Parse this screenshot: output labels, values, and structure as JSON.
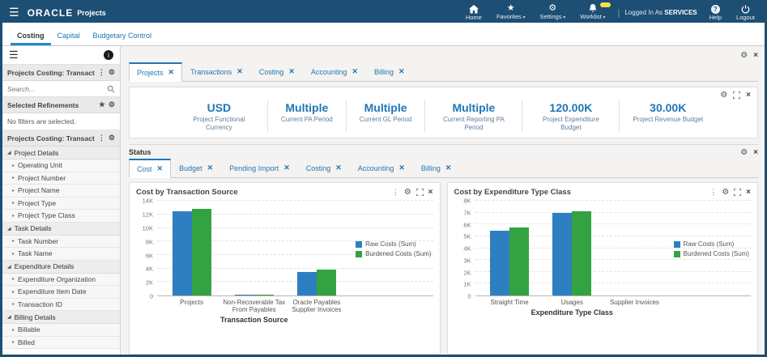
{
  "header": {
    "brand": "ORACLE",
    "app": "Projects",
    "nav": [
      {
        "label": "Home",
        "icon": "home-icon",
        "dropdown": false,
        "badge": false
      },
      {
        "label": "Favorites",
        "icon": "star-icon",
        "dropdown": true,
        "badge": false
      },
      {
        "label": "Settings",
        "icon": "gear-icon",
        "dropdown": true,
        "badge": false
      },
      {
        "label": "Worklist",
        "icon": "bell-icon",
        "dropdown": true,
        "badge": true
      }
    ],
    "logged_in_as": "Logged In As",
    "user": "SERVICES",
    "help_label": "Help",
    "logout_label": "Logout"
  },
  "page_tabs": {
    "items": [
      "Costing",
      "Capital",
      "Budgetary Control"
    ],
    "active_index": 0
  },
  "sidebar": {
    "panel1_title": "Projects Costing: Transact...",
    "search_placeholder": "Search...",
    "refinements_title": "Selected Refinements",
    "no_filters_text": "No filters are selected.",
    "panel2_title": "Projects Costing: Transact...",
    "groups": [
      {
        "label": "Project Details",
        "items": [
          "Operating Unit",
          "Project Number",
          "Project Name",
          "Project Type",
          "Project Type Class"
        ]
      },
      {
        "label": "Task Details",
        "items": [
          "Task Number",
          "Task Name"
        ]
      },
      {
        "label": "Expenditure Details",
        "items": [
          "Expenditure Organization",
          "Expenditure Item Date",
          "Transaction ID"
        ]
      },
      {
        "label": "Billing Details",
        "items": [
          "Billable",
          "Billed"
        ]
      }
    ]
  },
  "main_tabs": {
    "items": [
      "Projects",
      "Transactions",
      "Costing",
      "Accounting",
      "Billing"
    ],
    "active_index": 0
  },
  "kpis": [
    {
      "value": "USD",
      "label": "Project Functional Currency"
    },
    {
      "value": "Multiple",
      "label": "Current PA Period"
    },
    {
      "value": "Multiple",
      "label": "Current GL Period"
    },
    {
      "value": "Multiple",
      "label": "Current Reporting PA Period"
    },
    {
      "value": "120.00K",
      "label": "Project Expenditure Budget"
    },
    {
      "value": "30.00K",
      "label": "Project Revenue Budget"
    }
  ],
  "status": {
    "label": "Status",
    "tabs": [
      "Cost",
      "Budget",
      "Pending Import",
      "Costing",
      "Accounting",
      "Billing"
    ],
    "active_index": 0
  },
  "colors": {
    "header_navy": "#1d4e74",
    "link_blue": "#2176b5",
    "bar_blue": "#2e7fc1",
    "bar_green": "#33a342",
    "badge_yellow": "#f3e04d"
  },
  "chart_data": [
    {
      "type": "bar",
      "title": "Cost by Transaction Source",
      "xlabel": "Transaction Source",
      "ylabel": "",
      "ylim": [
        0,
        14000
      ],
      "ytick_step": 2000,
      "grid": true,
      "legend_position": "right",
      "categories": [
        "Projects",
        "Non-Recoverable Tax From Payables",
        "Oracle Payables Supplier Invoices"
      ],
      "series": [
        {
          "name": "Raw Costs (Sum)",
          "color": "#2e7fc1",
          "values": [
            12400,
            150,
            3500
          ]
        },
        {
          "name": "Burdened Costs (Sum)",
          "color": "#33a342",
          "values": [
            12800,
            180,
            3800
          ]
        }
      ]
    },
    {
      "type": "bar",
      "title": "Cost by Expenditure Type Class",
      "xlabel": "Expenditure Type Class",
      "ylabel": "",
      "ylim": [
        0,
        8000
      ],
      "ytick_step": 1000,
      "grid": true,
      "legend_position": "right",
      "categories": [
        "Straight Time",
        "Usages",
        "Supplier Invoices"
      ],
      "series": [
        {
          "name": "Raw Costs (Sum)",
          "color": "#2e7fc1",
          "values": [
            5500,
            7000,
            0
          ]
        },
        {
          "name": "Burdened Costs (Sum)",
          "color": "#33a342",
          "values": [
            5750,
            7100,
            0
          ]
        }
      ]
    }
  ]
}
